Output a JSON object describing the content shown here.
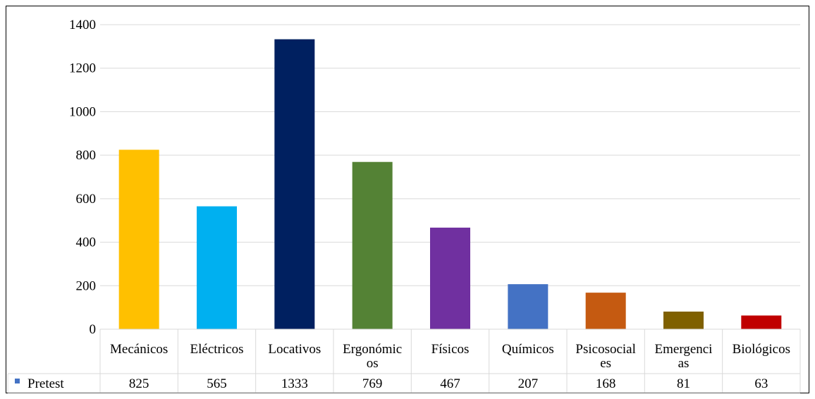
{
  "chart_data": {
    "type": "bar",
    "categories": [
      [
        "Mecánicos"
      ],
      [
        "Eléctricos"
      ],
      [
        "Locativos"
      ],
      [
        "Ergonómic",
        "os"
      ],
      [
        "Físicos"
      ],
      [
        "Químicos"
      ],
      [
        "Psicosocial",
        "es"
      ],
      [
        "Emergenci",
        "as"
      ],
      [
        "Biológicos"
      ]
    ],
    "series": [
      {
        "name": "Pretest",
        "values": [
          825,
          565,
          1333,
          769,
          467,
          207,
          168,
          81,
          63
        ]
      }
    ],
    "bar_colors": [
      "#ffc000",
      "#00b0f0",
      "#002060",
      "#548235",
      "#7030a0",
      "#4472c4",
      "#c55a11",
      "#7f6000",
      "#c00000"
    ],
    "legend_marker_color": "#4472c4",
    "ylim": [
      0,
      1400
    ],
    "yticks": [
      0,
      200,
      400,
      600,
      800,
      1000,
      1200,
      1400
    ],
    "grid": true,
    "data_table": true
  }
}
